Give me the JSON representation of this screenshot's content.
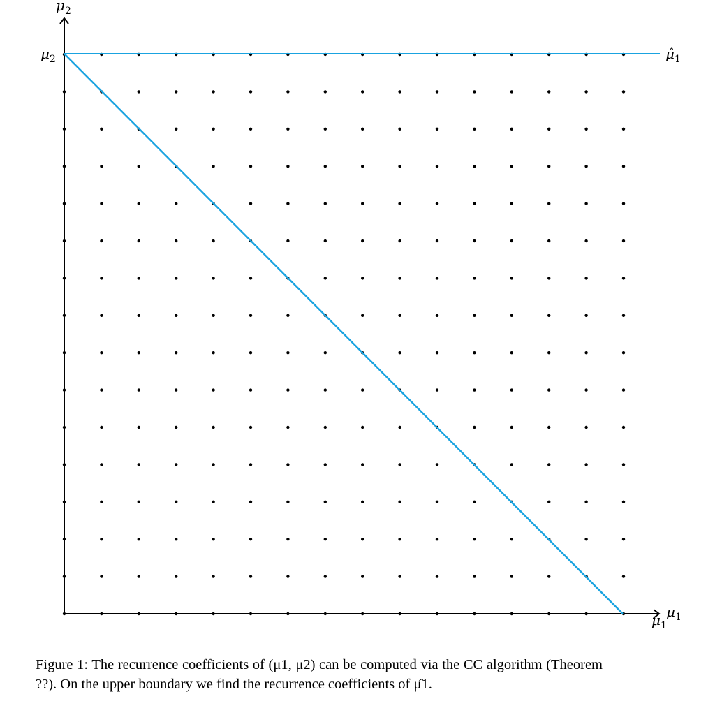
{
  "diagram": {
    "grid": {
      "columns": 16,
      "rows": 16
    },
    "line_color": "#1aa3e0",
    "labels": {
      "y_axis_top": {
        "symbol": "μ",
        "sub": "2"
      },
      "y_axis_left": {
        "symbol": "μ",
        "sub": "2"
      },
      "x_axis_right": {
        "symbol": "μ",
        "sub": "1"
      },
      "x_axis_below": {
        "symbol": "μ",
        "sub": "1"
      },
      "upper_right": {
        "symbol": "μ̂",
        "sub": "1"
      }
    }
  },
  "caption": {
    "text": "Figure 1: The recurrence coefficients of (μ1, μ2) can be computed via the CC algorithm (Theorem ??). On the upper boundary we find the recurrence coefficients of μ̂1."
  }
}
